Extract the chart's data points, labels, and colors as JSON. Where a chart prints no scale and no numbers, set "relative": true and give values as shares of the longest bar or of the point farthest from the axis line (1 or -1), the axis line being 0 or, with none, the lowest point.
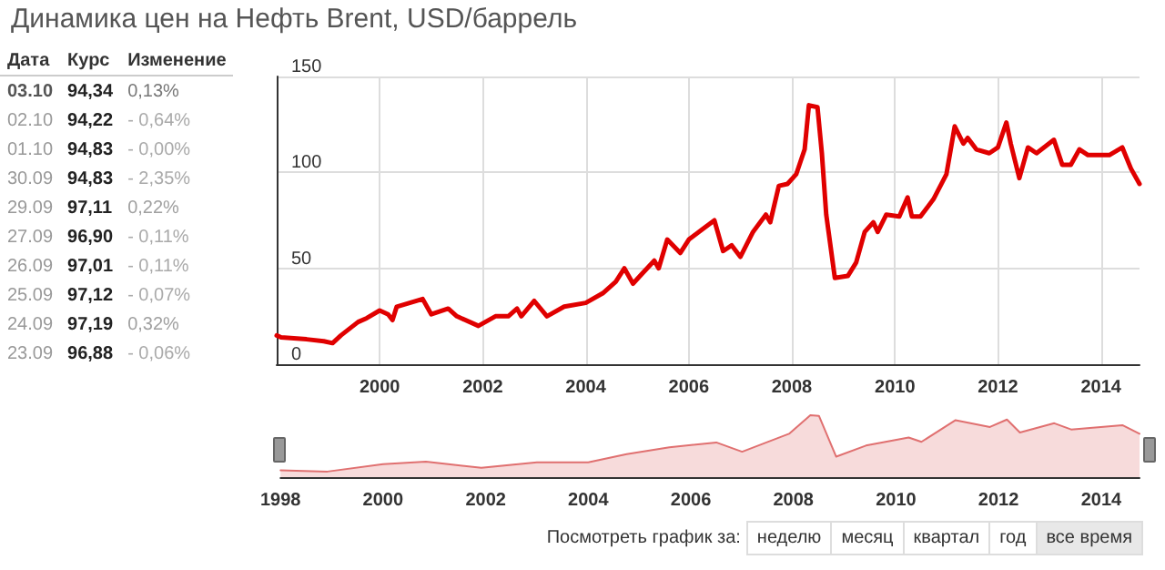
{
  "chart_data": [
    {
      "type": "other",
      "xlabel": "Дата",
      "categories": [
        "03.10",
        "02.10",
        "01.10",
        "30.09",
        "29.09",
        "27.09",
        "26.09",
        "25.09",
        "24.09",
        "23.09"
      ],
      "series": [
        {
          "name": "Курс",
          "values": [
            94.34,
            94.22,
            94.83,
            94.83,
            97.11,
            96.9,
            97.01,
            97.12,
            97.19,
            96.88
          ],
          "value_labels": [
            "94,34",
            "94,22",
            "94,83",
            "94,83",
            "97,11",
            "96,90",
            "97,01",
            "97,12",
            "97,19",
            "96,88"
          ]
        },
        {
          "name": "Изменение",
          "values": [
            0.13,
            -0.64,
            0,
            -2.35,
            0.22,
            -0.11,
            -0.11,
            -0.07,
            0.32,
            -0.06
          ],
          "value_labels": [
            "0,13%",
            "- 0,64%",
            "- 0,00%",
            "- 2,35%",
            "0,22%",
            "- 0,11%",
            "- 0,11%",
            "- 0,07%",
            "0,32%",
            "- 0,06%"
          ]
        }
      ]
    },
    {
      "type": "line",
      "title": "Динамика цен на Нефть Brent, USD/баррель",
      "x": [
        "1998-01",
        "1998-02",
        "1998-08",
        "1998-12",
        "1999-02",
        "1999-04",
        "1999-08",
        "1999-10",
        "2000-01",
        "2000-03",
        "2000-04",
        "2000-05",
        "2000-08",
        "2000-11",
        "2001-01",
        "2001-05",
        "2001-07",
        "2001-12",
        "2002-04",
        "2002-07",
        "2002-09",
        "2002-10",
        "2003-01",
        "2003-04",
        "2003-08",
        "2004-01",
        "2004-05",
        "2004-08",
        "2004-10",
        "2004-12",
        "2005-02",
        "2005-05",
        "2005-06",
        "2005-08",
        "2005-11",
        "2006-01",
        "2006-04",
        "2006-07",
        "2006-09",
        "2006-11",
        "2007-01",
        "2007-04",
        "2007-07",
        "2007-08",
        "2007-10",
        "2007-12",
        "2008-02",
        "2008-04",
        "2008-05",
        "2008-07",
        "2008-08",
        "2008-09",
        "2008-11",
        "2009-02",
        "2009-04",
        "2009-06",
        "2009-08",
        "2009-09",
        "2009-11",
        "2010-02",
        "2010-04",
        "2010-05",
        "2010-07",
        "2010-10",
        "2011-01",
        "2011-03",
        "2011-05",
        "2011-06",
        "2011-08",
        "2011-11",
        "2012-01",
        "2012-03",
        "2012-04",
        "2012-06",
        "2012-08",
        "2012-10",
        "2013-02",
        "2013-04",
        "2013-06",
        "2013-08",
        "2013-10",
        "2014-03",
        "2014-06",
        "2014-08",
        "2014-10"
      ],
      "series": [
        {
          "color": "#e00000",
          "values": [
            15,
            14,
            13,
            12,
            11,
            15,
            22,
            24,
            28,
            26,
            23,
            30,
            32,
            34,
            26,
            29,
            25,
            20,
            25,
            25,
            29,
            25,
            33,
            25,
            30,
            32,
            37,
            43,
            50,
            42,
            47,
            54,
            50,
            65,
            58,
            65,
            70,
            75,
            59,
            62,
            56,
            69,
            78,
            74,
            93,
            94,
            99,
            112,
            135,
            134,
            110,
            78,
            45,
            46,
            53,
            69,
            74,
            69,
            78,
            77,
            87,
            77,
            77,
            86,
            99,
            124,
            115,
            118,
            112,
            110,
            113,
            126,
            115,
            97,
            113,
            110,
            117,
            104,
            104,
            112,
            109,
            109,
            113,
            102,
            94
          ]
        }
      ],
      "xlim": [
        "1998-01",
        "2014-10"
      ],
      "xticks": [
        "2000",
        "2002",
        "2004",
        "2006",
        "2008",
        "2010",
        "2012",
        "2014"
      ],
      "ylim": [
        0,
        150
      ],
      "yticks": [
        0,
        50,
        100,
        150
      ],
      "grid": true,
      "marker": "none",
      "line_style": "solid"
    },
    {
      "type": "area",
      "relative": true,
      "x": [
        "1998-01",
        "1998-12",
        "2000-01",
        "2000-11",
        "2001-12",
        "2003-01",
        "2004-01",
        "2004-10",
        "2005-08",
        "2006-07",
        "2007-01",
        "2007-12",
        "2008-05",
        "2008-07",
        "2008-11",
        "2009-06",
        "2010-04",
        "2010-07",
        "2011-03",
        "2011-11",
        "2012-03",
        "2012-06",
        "2013-02",
        "2013-06",
        "2014-06",
        "2014-10"
      ],
      "series": [
        {
          "color": "#e07070",
          "values": [
            0.11,
            0.09,
            0.21,
            0.25,
            0.15,
            0.24,
            0.24,
            0.37,
            0.48,
            0.56,
            0.41,
            0.7,
            1,
            0.99,
            0.33,
            0.51,
            0.64,
            0.57,
            0.92,
            0.81,
            0.93,
            0.72,
            0.87,
            0.77,
            0.84,
            0.7
          ]
        }
      ],
      "xlim": [
        "1998-01",
        "2014-10"
      ],
      "xticks": [
        "1998",
        "2000",
        "2002",
        "2004",
        "2006",
        "2008",
        "2010",
        "2012",
        "2014"
      ],
      "annotations": [
        "Посмотреть график за:",
        "неделю",
        "месяц",
        "квартал",
        "год",
        "все время"
      ]
    }
  ]
}
